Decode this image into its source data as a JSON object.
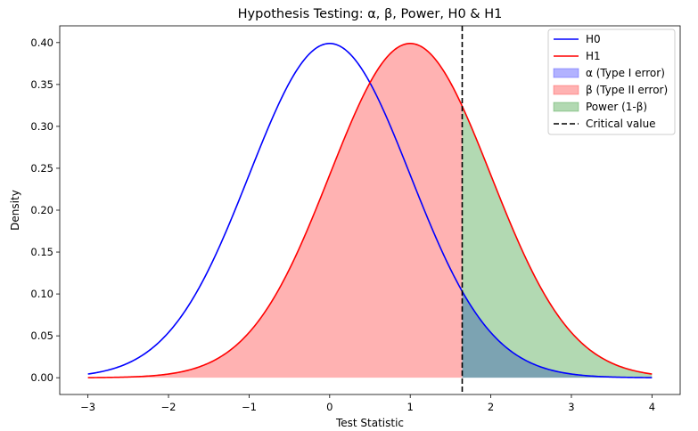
{
  "chart_data": {
    "type": "line",
    "title": "Hypothesis Testing: α, β, Power, H0 & H1",
    "xlabel": "Test Statistic",
    "ylabel": "Density",
    "xlim": [
      -3.35,
      4.35
    ],
    "ylim": [
      -0.02,
      0.42
    ],
    "x_ticks": [
      -3,
      -2,
      -1,
      0,
      1,
      2,
      3,
      4
    ],
    "x_tick_labels": [
      "−3",
      "−2",
      "−1",
      "0",
      "1",
      "2",
      "3",
      "4"
    ],
    "y_ticks": [
      0.0,
      0.05,
      0.1,
      0.15,
      0.2,
      0.25,
      0.3,
      0.35,
      0.4
    ],
    "y_tick_labels": [
      "0.00",
      "0.05",
      "0.10",
      "0.15",
      "0.20",
      "0.25",
      "0.30",
      "0.35",
      "0.40"
    ],
    "x_range": [
      -3,
      4
    ],
    "critical_value": 1.645,
    "series": [
      {
        "name": "H0",
        "kind": "normal_pdf",
        "mean": 0,
        "sd": 1,
        "color": "#0000ff"
      },
      {
        "name": "H1",
        "kind": "normal_pdf",
        "mean": 1,
        "sd": 1,
        "color": "#ff0000"
      }
    ],
    "fills": [
      {
        "name": "α (Type I error)",
        "under": "H0",
        "from": 1.645,
        "to": 4,
        "color": "#0000ff",
        "alpha": 0.3
      },
      {
        "name": "β (Type II error)",
        "under": "H1",
        "from": -3,
        "to": 1.645,
        "color": "#ff0000",
        "alpha": 0.3
      },
      {
        "name": "Power (1-β)",
        "under": "H1",
        "from": 1.645,
        "to": 4,
        "color": "#008000",
        "alpha": 0.3
      }
    ],
    "vline": {
      "name": "Critical value",
      "x": 1.645,
      "color": "#000000",
      "style": "dashed"
    },
    "legend": {
      "location": "top-right",
      "entries": [
        {
          "label": "H0",
          "kind": "line",
          "color": "#0000ff"
        },
        {
          "label": "H1",
          "kind": "line",
          "color": "#ff0000"
        },
        {
          "label": "α (Type I error)",
          "kind": "patch",
          "color": "#0000ff",
          "alpha": 0.3
        },
        {
          "label": "β (Type II error)",
          "kind": "patch",
          "color": "#ff0000",
          "alpha": 0.3
        },
        {
          "label": "Power (1-β)",
          "kind": "patch",
          "color": "#008000",
          "alpha": 0.3
        },
        {
          "label": "Critical value",
          "kind": "dashed",
          "color": "#000000"
        }
      ]
    }
  }
}
